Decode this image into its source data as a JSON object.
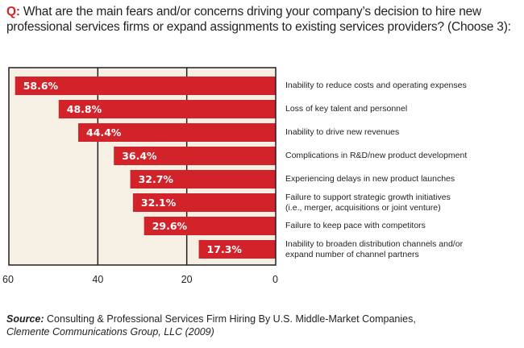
{
  "question": {
    "prefix": "Q:",
    "text": " What are the main fears and/or concerns driving your company’s decision to hire new professional services firms or expand assignments to existing services providers? (Choose 3):"
  },
  "colors": {
    "bar": "#d2232a",
    "plot_background": "#f5efe4",
    "frame": "#231f20",
    "accent": "#d2232a"
  },
  "chart_data": {
    "type": "bar",
    "orientation": "horizontal",
    "x_direction": "reversed",
    "title": "What are the main fears and/or concerns driving your company’s decision to hire new professional services firms or expand assignments to existing services providers? (Choose 3)",
    "xlabel": "",
    "ylabel": "",
    "xlim": [
      0,
      60
    ],
    "xticks": [
      60,
      40,
      20,
      0
    ],
    "grid": true,
    "categories": [
      "Inability to reduce costs and operating expenses",
      "Loss of key talent and personnel",
      "Inability to drive new revenues",
      "Complications in R&D/new product development",
      "Experiencing delays in new product launches",
      "Failure to support strategic growth initiatives (i.e., merger, acquisitions or joint venture)",
      "Failure to keep pace with competitors",
      "Inability to broaden distribution channels and/or expand number of channel partners"
    ],
    "category_lines": [
      [
        "Inability to reduce costs and operating expenses"
      ],
      [
        "Loss of key talent and personnel"
      ],
      [
        "Inability to drive new revenues"
      ],
      [
        "Complications in R&D/new product development"
      ],
      [
        "Experiencing delays in new product launches"
      ],
      [
        "Failure to support strategic growth initiatives",
        "(i.e., merger, acquisitions or joint venture)"
      ],
      [
        "Failure to keep pace with competitors"
      ],
      [
        "Inability to broaden distribution channels and/or",
        "expand number of channel partners"
      ]
    ],
    "values": [
      58.6,
      48.8,
      44.4,
      36.4,
      32.7,
      32.1,
      29.6,
      17.3
    ],
    "value_labels": [
      "58.6%",
      "48.8%",
      "44.4%",
      "36.4%",
      "32.7%",
      "32.1%",
      "29.6%",
      "17.3%"
    ],
    "unit": "%"
  },
  "source": {
    "label": "Source:",
    "text": " Consulting & Professional Services Firm Hiring By U.S. Middle-Market Companies,",
    "publisher": "Clemente Communications Group, LLC (2009)"
  }
}
